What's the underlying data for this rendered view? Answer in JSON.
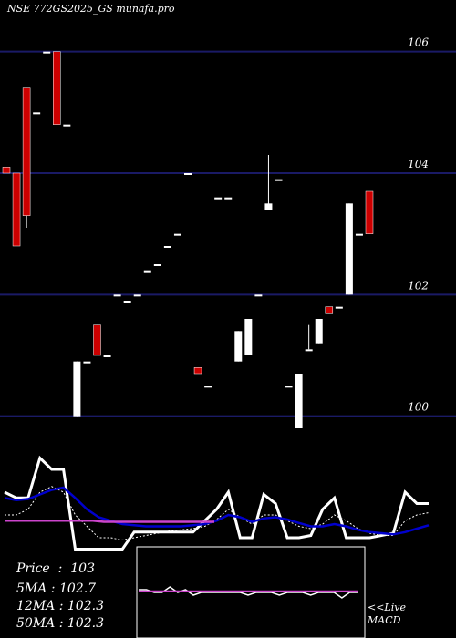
{
  "header": {
    "title": "NSE 772GS2025_GS munafa.pro"
  },
  "chart_data": [
    {
      "type": "candlestick",
      "title": "NSE 772GS2025_GS munafa.pro",
      "ylim": [
        99.8,
        106.4
      ],
      "yticks": [
        100,
        102,
        104,
        106
      ],
      "candles": [
        {
          "o": 104.1,
          "h": 104.1,
          "l": 104.0,
          "c": 104.0
        },
        {
          "o": 104.0,
          "h": 104.0,
          "l": 102.8,
          "c": 102.8
        },
        {
          "o": 105.4,
          "h": 105.4,
          "l": 103.1,
          "c": 103.3
        },
        {
          "o": 105.0,
          "h": 105.0,
          "l": 105.0,
          "c": 105.0
        },
        {
          "o": 106.0,
          "h": 106.0,
          "l": 106.0,
          "c": 106.0
        },
        {
          "o": 106.0,
          "h": 106.0,
          "l": 104.8,
          "c": 104.8
        },
        {
          "o": 104.8,
          "h": 104.8,
          "l": 104.8,
          "c": 104.8
        },
        {
          "o": 100.0,
          "h": 100.9,
          "l": 100.0,
          "c": 100.9
        },
        {
          "o": 100.9,
          "h": 100.9,
          "l": 100.9,
          "c": 100.9
        },
        {
          "o": 101.5,
          "h": 101.5,
          "l": 101.0,
          "c": 101.0
        },
        {
          "o": 101.0,
          "h": 101.0,
          "l": 101.0,
          "c": 101.0
        },
        {
          "o": 102.0,
          "h": 102.0,
          "l": 102.0,
          "c": 102.0
        },
        {
          "o": 101.9,
          "h": 101.9,
          "l": 101.9,
          "c": 101.9
        },
        {
          "o": 102.0,
          "h": 102.0,
          "l": 102.0,
          "c": 102.0
        },
        {
          "o": 102.4,
          "h": 102.4,
          "l": 102.4,
          "c": 102.4
        },
        {
          "o": 102.5,
          "h": 102.5,
          "l": 102.5,
          "c": 102.5
        },
        {
          "o": 102.8,
          "h": 102.8,
          "l": 102.8,
          "c": 102.8
        },
        {
          "o": 103.0,
          "h": 103.0,
          "l": 103.0,
          "c": 103.0
        },
        {
          "o": 104.0,
          "h": 104.0,
          "l": 104.0,
          "c": 104.0
        },
        {
          "o": 100.8,
          "h": 100.8,
          "l": 100.7,
          "c": 100.7
        },
        {
          "o": 100.5,
          "h": 100.5,
          "l": 100.5,
          "c": 100.5
        },
        {
          "o": 103.6,
          "h": 103.6,
          "l": 103.6,
          "c": 103.6
        },
        {
          "o": 103.6,
          "h": 103.6,
          "l": 103.6,
          "c": 103.6
        },
        {
          "o": 100.9,
          "h": 101.4,
          "l": 100.9,
          "c": 101.4
        },
        {
          "o": 101.0,
          "h": 101.6,
          "l": 101.0,
          "c": 101.6
        },
        {
          "o": 102.0,
          "h": 102.0,
          "l": 102.0,
          "c": 102.0
        },
        {
          "o": 103.4,
          "h": 104.3,
          "l": 103.4,
          "c": 103.5
        },
        {
          "o": 103.9,
          "h": 103.9,
          "l": 103.9,
          "c": 103.9
        },
        {
          "o": 100.5,
          "h": 100.5,
          "l": 100.5,
          "c": 100.5
        },
        {
          "o": 99.8,
          "h": 100.7,
          "l": 99.8,
          "c": 100.7
        },
        {
          "o": 101.1,
          "h": 101.5,
          "l": 101.1,
          "c": 101.1
        },
        {
          "o": 101.2,
          "h": 101.6,
          "l": 101.2,
          "c": 101.6
        },
        {
          "o": 101.8,
          "h": 101.8,
          "l": 101.7,
          "c": 101.7
        },
        {
          "o": 101.8,
          "h": 101.8,
          "l": 101.8,
          "c": 101.8
        },
        {
          "o": 102.0,
          "h": 103.5,
          "l": 102.0,
          "c": 103.5
        },
        {
          "o": 103.0,
          "h": 103.0,
          "l": 103.0,
          "c": 103.0
        },
        {
          "o": 103.7,
          "h": 103.7,
          "l": 103.0,
          "c": 103.0
        }
      ],
      "price_label": "Price",
      "price_value": "103",
      "ma": [
        {
          "name": "5MA",
          "value": "102.7"
        },
        {
          "name": "12MA",
          "value": "102.3"
        },
        {
          "name": "50MA",
          "value": "102.3"
        }
      ]
    },
    {
      "type": "line",
      "series": [
        {
          "color": "#ffffff",
          "values": [
            60,
            55,
            55,
            90,
            80,
            80,
            10,
            10,
            10,
            10,
            10,
            25,
            25,
            25,
            25,
            25,
            25,
            35,
            45,
            60,
            20,
            20,
            58,
            50,
            20,
            20,
            22,
            45,
            55,
            20,
            20,
            20,
            22,
            24,
            60,
            50,
            50
          ]
        },
        {
          "color": "#ffffff",
          "dashed": true,
          "values": [
            40,
            40,
            45,
            60,
            65,
            60,
            40,
            30,
            20,
            20,
            18,
            20,
            22,
            24,
            26,
            27,
            28,
            30,
            36,
            45,
            38,
            32,
            40,
            40,
            35,
            30,
            28,
            32,
            40,
            35,
            28,
            24,
            22,
            22,
            35,
            40,
            42
          ]
        },
        {
          "color": "#0000cc",
          "values": [
            55,
            53,
            54,
            58,
            62,
            64,
            55,
            45,
            38,
            35,
            32,
            31,
            30,
            30,
            30,
            30,
            31,
            32,
            35,
            40,
            38,
            34,
            37,
            38,
            36,
            33,
            30,
            30,
            32,
            30,
            27,
            25,
            24,
            23,
            25,
            28,
            31
          ]
        },
        {
          "color": "#cc44cc",
          "values": [
            35,
            35,
            35,
            35,
            35,
            35,
            35,
            35,
            35,
            34,
            34,
            34,
            34,
            34,
            34,
            34,
            34,
            34,
            34,
            34
          ]
        }
      ]
    },
    {
      "type": "line",
      "label": "MACD",
      "live_label": "<<Live",
      "series": [
        {
          "color": "#ffffff",
          "values": [
            0.55,
            0.55,
            0.5,
            0.5,
            0.6,
            0.5,
            0.55,
            0.45,
            0.5,
            0.5,
            0.5,
            0.5,
            0.5,
            0.5,
            0.45,
            0.5,
            0.5,
            0.5,
            0.45,
            0.5,
            0.5,
            0.5,
            0.45,
            0.5,
            0.5,
            0.5,
            0.4,
            0.5,
            0.5
          ]
        },
        {
          "color": "#cc44cc",
          "values": [
            0.52,
            0.52,
            0.52,
            0.52,
            0.52,
            0.52,
            0.52,
            0.52,
            0.52,
            0.52,
            0.52,
            0.52,
            0.52,
            0.52,
            0.52,
            0.52,
            0.52,
            0.52,
            0.52,
            0.52,
            0.52,
            0.52,
            0.52,
            0.52,
            0.52,
            0.52,
            0.52,
            0.52,
            0.52
          ]
        }
      ]
    }
  ],
  "colors": {
    "background": "#000000",
    "gridline": "#1a1a66",
    "bull": "#ffffff",
    "bear": "#cc0000",
    "text": "#ffffff"
  }
}
